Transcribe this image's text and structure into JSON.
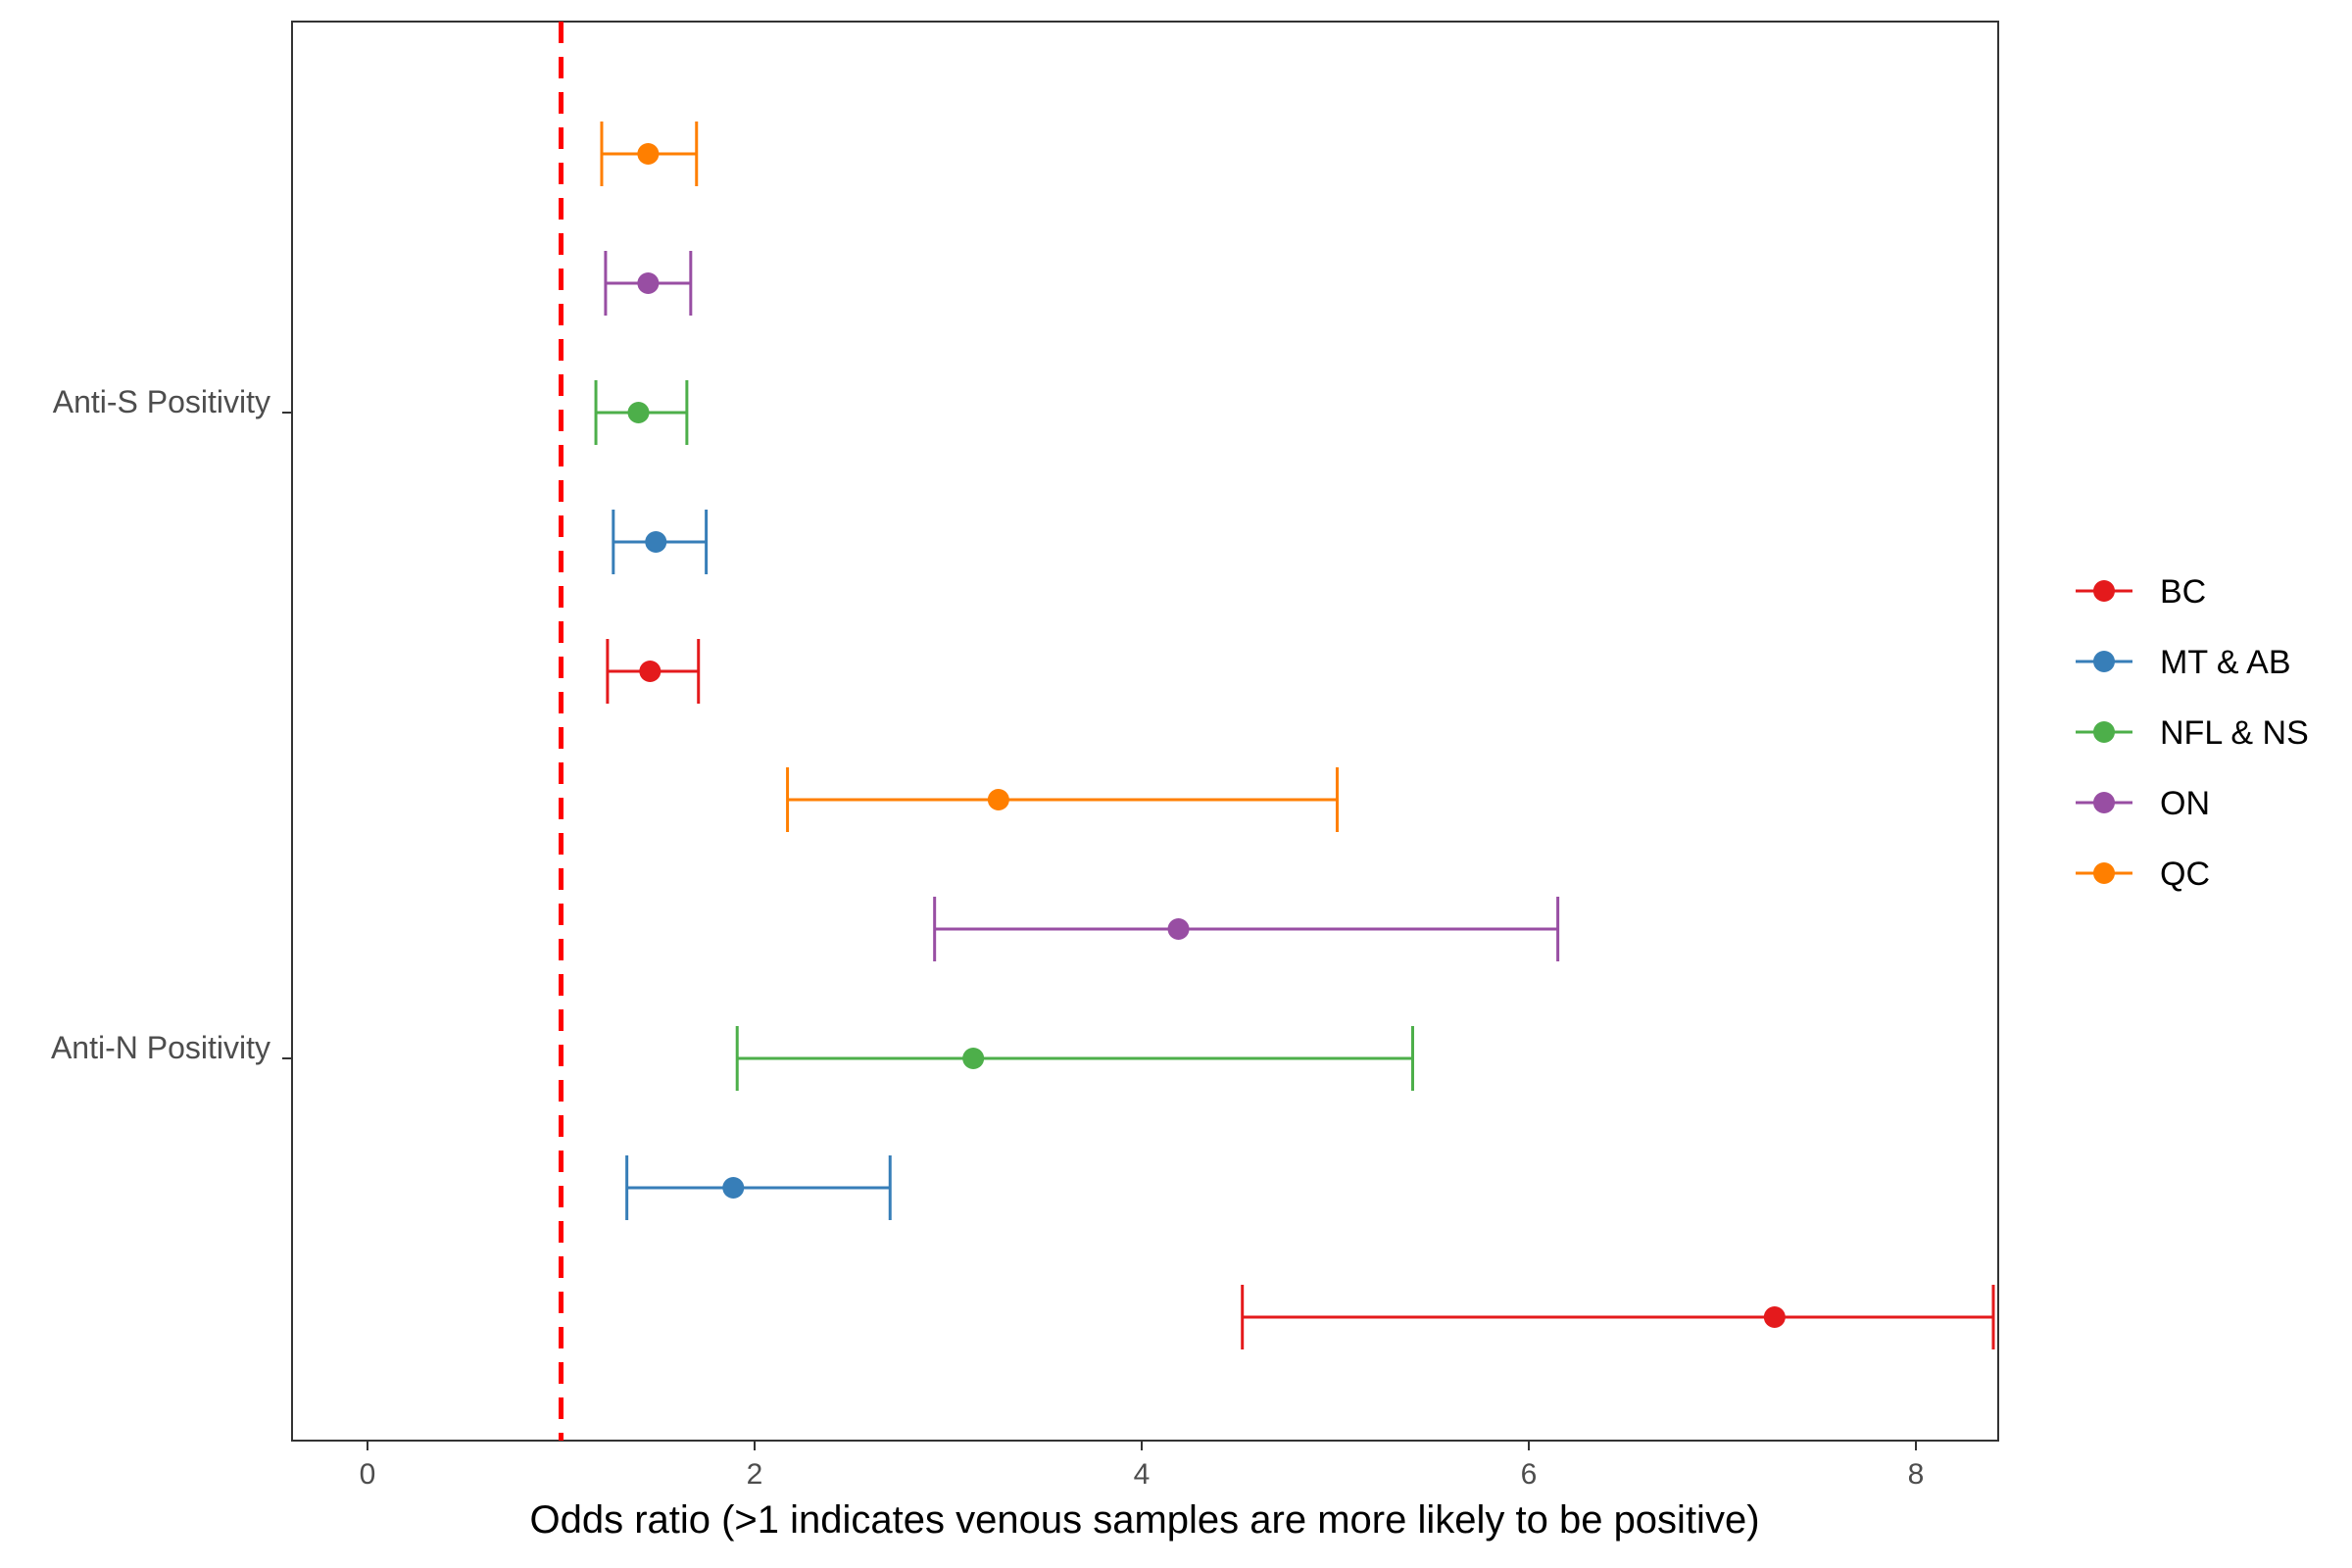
{
  "chart_data": {
    "type": "forest",
    "xlabel": "Odds ratio (>1 indicates venous samples are more likely to be positive)",
    "ylabel": "",
    "title": "",
    "xlim": [
      -0.4,
      8.4
    ],
    "xticks": [
      0,
      2,
      4,
      6,
      8
    ],
    "reference_line": {
      "x": 1,
      "style": "dashed",
      "color": "#ff0000"
    },
    "grid": false,
    "legend_position": "right",
    "categories": [
      "Anti-S Positivity",
      "Anti-N Positivity"
    ],
    "series": [
      {
        "name": "BC",
        "color": "#e41a1c",
        "points": [
          {
            "category": "Anti-S Positivity",
            "estimate": 1.46,
            "lower": 1.24,
            "upper": 1.71
          },
          {
            "category": "Anti-N Positivity",
            "estimate": 7.27,
            "lower": 4.52,
            "upper": 8.4
          }
        ]
      },
      {
        "name": "MT & AB",
        "color": "#377eb8",
        "points": [
          {
            "category": "Anti-S Positivity",
            "estimate": 1.49,
            "lower": 1.27,
            "upper": 1.75
          },
          {
            "category": "Anti-N Positivity",
            "estimate": 1.89,
            "lower": 1.34,
            "upper": 2.7
          }
        ]
      },
      {
        "name": "NFL & NS",
        "color": "#4daf4a",
        "points": [
          {
            "category": "Anti-S Positivity",
            "estimate": 1.4,
            "lower": 1.18,
            "upper": 1.65
          },
          {
            "category": "Anti-N Positivity",
            "estimate": 3.13,
            "lower": 1.91,
            "upper": 5.4
          }
        ]
      },
      {
        "name": "ON",
        "color": "#984ea3",
        "points": [
          {
            "category": "Anti-S Positivity",
            "estimate": 1.45,
            "lower": 1.23,
            "upper": 1.67
          },
          {
            "category": "Anti-N Positivity",
            "estimate": 4.19,
            "lower": 2.93,
            "upper": 6.15
          }
        ]
      },
      {
        "name": "QC",
        "color": "#ff7f00",
        "points": [
          {
            "category": "Anti-S Positivity",
            "estimate": 1.45,
            "lower": 1.21,
            "upper": 1.7
          },
          {
            "category": "Anti-N Positivity",
            "estimate": 3.26,
            "lower": 2.17,
            "upper": 5.01
          }
        ]
      }
    ]
  }
}
